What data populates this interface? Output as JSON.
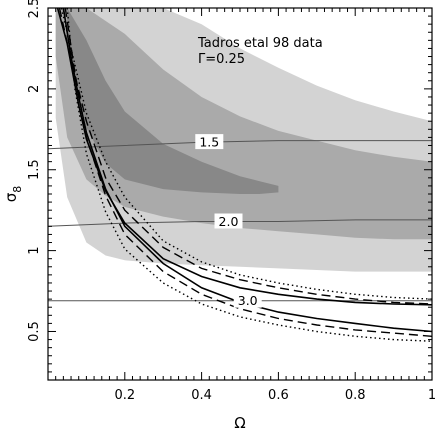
{
  "chart_data": {
    "type": "area",
    "title": "",
    "xlabel": "Ω",
    "ylabel": "σ8",
    "ylabel_main": "σ",
    "ylabel_sub": "8",
    "xlim": [
      0.0,
      1.0
    ],
    "ylim": [
      0.2,
      2.5
    ],
    "x_ticks": [
      0.2,
      0.4,
      0.6,
      0.8,
      1.0
    ],
    "x_tick_labels": [
      "0.2",
      "0.4",
      "0.6",
      "0.8",
      "1"
    ],
    "y_ticks": [
      0.5,
      1.0,
      1.5,
      2.0,
      2.5
    ],
    "y_tick_labels": [
      "0.5",
      "1",
      "1.5",
      "2",
      "2.5"
    ],
    "grid": false,
    "annotations": [
      "Tadros etal 98 data",
      "Γ=0.25"
    ],
    "colors": {
      "region_outer": "#d3d3d3",
      "region_middle": "#aaaaaa",
      "region_inner": "#888888",
      "contour_line": "#555555",
      "curve": "#000000"
    },
    "confidence_regions": [
      {
        "level": "outer",
        "upper": [
          [
            0.02,
            2.5
          ],
          [
            0.2,
            2.5
          ],
          [
            0.3,
            2.5
          ],
          [
            0.4,
            2.4
          ],
          [
            0.5,
            2.25
          ],
          [
            0.6,
            2.13
          ],
          [
            0.7,
            2.02
          ],
          [
            0.8,
            1.93
          ],
          [
            0.9,
            1.86
          ],
          [
            1.0,
            1.8
          ]
        ],
        "lower": [
          [
            0.02,
            1.82
          ],
          [
            0.05,
            1.33
          ],
          [
            0.1,
            1.05
          ],
          [
            0.15,
            0.97
          ],
          [
            0.2,
            0.94
          ],
          [
            0.3,
            0.92
          ],
          [
            0.4,
            0.91
          ],
          [
            0.5,
            0.9
          ],
          [
            0.6,
            0.89
          ],
          [
            0.7,
            0.88
          ],
          [
            0.8,
            0.87
          ],
          [
            0.9,
            0.87
          ],
          [
            1.0,
            0.87
          ]
        ]
      },
      {
        "level": "middle",
        "upper": [
          [
            0.02,
            2.5
          ],
          [
            0.1,
            2.5
          ],
          [
            0.2,
            2.34
          ],
          [
            0.3,
            2.12
          ],
          [
            0.4,
            1.95
          ],
          [
            0.5,
            1.83
          ],
          [
            0.6,
            1.74
          ],
          [
            0.7,
            1.68
          ],
          [
            0.8,
            1.62
          ],
          [
            0.9,
            1.58
          ],
          [
            1.0,
            1.55
          ]
        ],
        "lower": [
          [
            0.02,
            2.2
          ],
          [
            0.05,
            1.7
          ],
          [
            0.1,
            1.44
          ],
          [
            0.15,
            1.34
          ],
          [
            0.2,
            1.27
          ],
          [
            0.3,
            1.21
          ],
          [
            0.4,
            1.17
          ],
          [
            0.5,
            1.14
          ],
          [
            0.6,
            1.12
          ],
          [
            0.7,
            1.1
          ],
          [
            0.8,
            1.08
          ],
          [
            0.9,
            1.07
          ],
          [
            1.0,
            1.07
          ]
        ]
      },
      {
        "level": "inner",
        "upper": [
          [
            0.05,
            2.5
          ],
          [
            0.1,
            2.3
          ],
          [
            0.15,
            2.05
          ],
          [
            0.2,
            1.86
          ],
          [
            0.3,
            1.66
          ],
          [
            0.4,
            1.55
          ],
          [
            0.5,
            1.46
          ],
          [
            0.55,
            1.43
          ],
          [
            0.6,
            1.4
          ]
        ],
        "lower": [
          [
            0.05,
            2.34
          ],
          [
            0.1,
            1.76
          ],
          [
            0.15,
            1.54
          ],
          [
            0.2,
            1.44
          ],
          [
            0.3,
            1.38
          ],
          [
            0.4,
            1.36
          ],
          [
            0.5,
            1.35
          ],
          [
            0.55,
            1.35
          ],
          [
            0.6,
            1.36
          ]
        ]
      }
    ],
    "contour_lines": [
      {
        "label": "1.5",
        "points": [
          [
            0.0,
            1.63
          ],
          [
            0.2,
            1.65
          ],
          [
            0.4,
            1.67
          ],
          [
            0.6,
            1.68
          ],
          [
            0.8,
            1.68
          ],
          [
            1.0,
            1.68
          ]
        ],
        "label_x": 0.42
      },
      {
        "label": "2.0",
        "points": [
          [
            0.0,
            1.15
          ],
          [
            0.2,
            1.17
          ],
          [
            0.4,
            1.18
          ],
          [
            0.6,
            1.18
          ],
          [
            0.8,
            1.19
          ],
          [
            1.0,
            1.19
          ]
        ],
        "label_x": 0.47
      },
      {
        "label": "3.0",
        "points": [
          [
            0.0,
            0.69
          ],
          [
            0.2,
            0.69
          ],
          [
            0.4,
            0.69
          ],
          [
            0.6,
            0.69
          ],
          [
            0.8,
            0.69
          ],
          [
            1.0,
            0.69
          ]
        ],
        "label_x": 0.52
      }
    ],
    "curves": [
      {
        "style": "solid",
        "points": [
          [
            0.025,
            2.5
          ],
          [
            0.05,
            2.28
          ],
          [
            0.08,
            1.9
          ],
          [
            0.1,
            1.69
          ],
          [
            0.15,
            1.37
          ],
          [
            0.2,
            1.17
          ],
          [
            0.3,
            0.95
          ],
          [
            0.4,
            0.84
          ],
          [
            0.5,
            0.77
          ],
          [
            0.6,
            0.73
          ],
          [
            0.7,
            0.7
          ],
          [
            0.8,
            0.68
          ],
          [
            0.9,
            0.67
          ],
          [
            1.0,
            0.665
          ]
        ]
      },
      {
        "style": "solid",
        "points": [
          [
            0.04,
            2.5
          ],
          [
            0.06,
            2.2
          ],
          [
            0.08,
            1.95
          ],
          [
            0.1,
            1.73
          ],
          [
            0.15,
            1.38
          ],
          [
            0.2,
            1.15
          ],
          [
            0.3,
            0.92
          ],
          [
            0.4,
            0.77
          ],
          [
            0.5,
            0.68
          ],
          [
            0.6,
            0.62
          ],
          [
            0.7,
            0.58
          ],
          [
            0.8,
            0.55
          ],
          [
            0.9,
            0.52
          ],
          [
            1.0,
            0.5
          ]
        ]
      },
      {
        "style": "dashed",
        "points": [
          [
            0.03,
            2.5
          ],
          [
            0.06,
            2.18
          ],
          [
            0.1,
            1.8
          ],
          [
            0.15,
            1.45
          ],
          [
            0.2,
            1.25
          ],
          [
            0.3,
            1.02
          ],
          [
            0.4,
            0.89
          ],
          [
            0.5,
            0.82
          ],
          [
            0.6,
            0.77
          ],
          [
            0.7,
            0.73
          ],
          [
            0.8,
            0.7
          ],
          [
            0.9,
            0.68
          ],
          [
            1.0,
            0.67
          ]
        ]
      },
      {
        "style": "dashed",
        "points": [
          [
            0.045,
            2.5
          ],
          [
            0.07,
            2.1
          ],
          [
            0.1,
            1.7
          ],
          [
            0.15,
            1.34
          ],
          [
            0.2,
            1.1
          ],
          [
            0.3,
            0.87
          ],
          [
            0.4,
            0.73
          ],
          [
            0.5,
            0.64
          ],
          [
            0.6,
            0.58
          ],
          [
            0.7,
            0.54
          ],
          [
            0.8,
            0.51
          ],
          [
            0.9,
            0.49
          ],
          [
            1.0,
            0.47
          ]
        ]
      },
      {
        "style": "dotted",
        "points": [
          [
            0.035,
            2.5
          ],
          [
            0.07,
            2.15
          ],
          [
            0.1,
            1.85
          ],
          [
            0.15,
            1.55
          ],
          [
            0.2,
            1.33
          ],
          [
            0.3,
            1.06
          ],
          [
            0.4,
            0.93
          ],
          [
            0.5,
            0.85
          ],
          [
            0.6,
            0.8
          ],
          [
            0.7,
            0.76
          ],
          [
            0.8,
            0.73
          ],
          [
            0.9,
            0.71
          ],
          [
            1.0,
            0.7
          ]
        ]
      },
      {
        "style": "dotted",
        "points": [
          [
            0.05,
            2.5
          ],
          [
            0.07,
            2.0
          ],
          [
            0.1,
            1.6
          ],
          [
            0.15,
            1.24
          ],
          [
            0.2,
            1.01
          ],
          [
            0.3,
            0.8
          ],
          [
            0.4,
            0.67
          ],
          [
            0.5,
            0.59
          ],
          [
            0.6,
            0.54
          ],
          [
            0.7,
            0.5
          ],
          [
            0.8,
            0.47
          ],
          [
            0.9,
            0.45
          ],
          [
            1.0,
            0.44
          ]
        ]
      }
    ]
  }
}
